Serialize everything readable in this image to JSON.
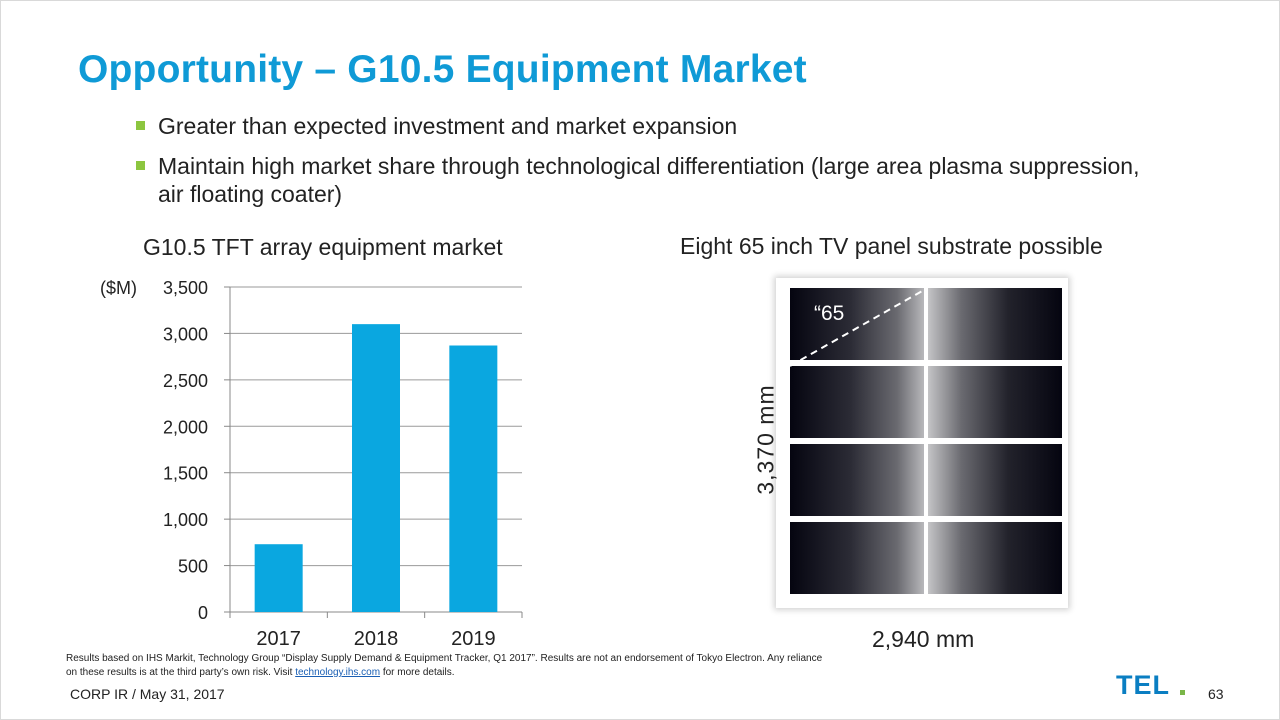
{
  "slide": {
    "title": "Opportunity – G10.5 Equipment Market",
    "bullets": [
      "Greater than expected investment and market expansion",
      "Maintain high market share through technological differentiation (large area plasma suppression, air floating coater)"
    ],
    "footnote": {
      "text": "Results based on IHS Markit, Technology Group “Display Supply Demand & Equipment Tracker, Q1 2017”. Results are not an endorsement of Tokyo Electron. Any reliance on these results is at the third party’s own risk. Visit",
      "link": "technology.ihs.com",
      "suffix": "for more details."
    },
    "corp_label": "CORP IR / May 31, 2017",
    "page_number": "63",
    "logo_text": "TEL"
  },
  "colors": {
    "title": "#0f9ad6",
    "bar": "#0aa7e0",
    "bullet_marker": "#8cc63f",
    "logo_blue": "#0a7ec2",
    "logo_green": "#7ab648"
  },
  "chart_data": {
    "type": "bar",
    "title": "G10.5 TFT array equipment market",
    "unit_label": "($M)",
    "categories": [
      "2017",
      "2018",
      "2019"
    ],
    "values": [
      730,
      3100,
      2870
    ],
    "ylim": [
      0,
      3500
    ],
    "yticks": [
      0,
      500,
      1000,
      1500,
      2000,
      2500,
      3000,
      3500
    ],
    "ytick_labels": [
      "0",
      "500",
      "1,000",
      "1,500",
      "2,000",
      "2,500",
      "3,000",
      "3,500"
    ],
    "grid": true,
    "xlabel": "",
    "ylabel": ""
  },
  "panel": {
    "title": "Eight 65 inch TV panel substrate possible",
    "diagonal_label": "“65",
    "height_label": "3,370 mm",
    "width_label": "2,940 mm",
    "rows": 4,
    "cols": 2
  }
}
